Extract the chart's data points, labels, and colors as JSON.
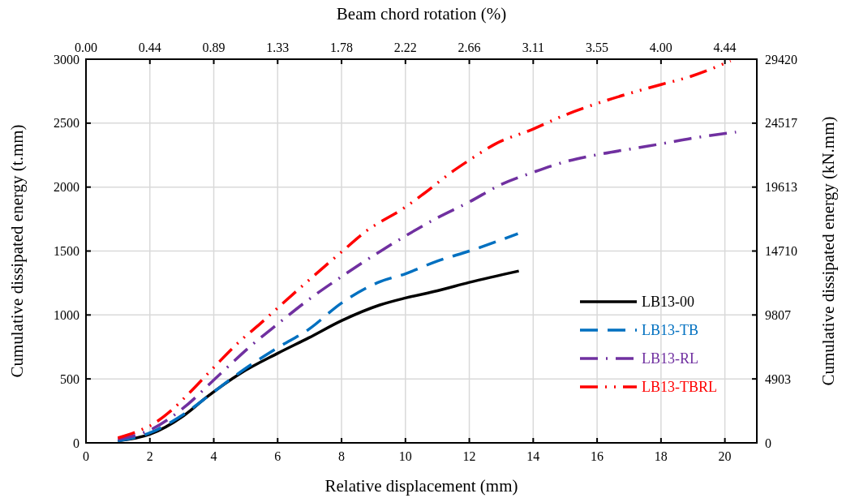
{
  "chart_data": {
    "type": "line",
    "xlabel": "Relative displacement (mm)",
    "ylabel": "Cumulative dissipated energy  (t.mm)",
    "y2label": "Cumulative dissipated energy (kN.mm)",
    "x2label": "Beam chord rotation (%)",
    "xlim": [
      0,
      21
    ],
    "xticks": [
      0,
      2,
      4,
      6,
      8,
      10,
      12,
      14,
      16,
      18,
      20
    ],
    "ylim": [
      0,
      3000
    ],
    "yticks": [
      0,
      500,
      1000,
      1500,
      2000,
      2500,
      3000
    ],
    "y2lim": [
      0,
      29420
    ],
    "y2ticks": [
      0,
      4903,
      9807,
      14710,
      19613,
      24517,
      29420
    ],
    "x2lim": [
      0,
      4.662
    ],
    "x2ticks": [
      {
        "value": 0,
        "label": "0.00"
      },
      {
        "value": 0.444,
        "label": "0.44"
      },
      {
        "value": 0.888,
        "label": "0.89"
      },
      {
        "value": 1.332,
        "label": "1.33"
      },
      {
        "value": 1.776,
        "label": "1.78"
      },
      {
        "value": 2.22,
        "label": "2.22"
      },
      {
        "value": 2.664,
        "label": "2.66"
      },
      {
        "value": 3.108,
        "label": "3.11"
      },
      {
        "value": 3.552,
        "label": "3.55"
      },
      {
        "value": 3.996,
        "label": "4.00"
      },
      {
        "value": 4.44,
        "label": "4.44"
      }
    ],
    "grid": true,
    "legend": "right",
    "series": [
      {
        "name": "LB13-00",
        "color": "#000000",
        "line_style": "solid",
        "x": [
          1,
          2,
          3.05,
          3.77,
          4.84,
          6,
          6.98,
          8,
          9.2,
          10,
          11,
          12,
          13.55
        ],
        "values": [
          15,
          67,
          211,
          356,
          544,
          700,
          822,
          955,
          1078,
          1133,
          1189,
          1255,
          1344
        ]
      },
      {
        "name": "LB13-TB",
        "color": "#0070c0",
        "line_style": "dashed",
        "x": [
          1,
          2,
          3.05,
          3.95,
          4.84,
          6,
          6.98,
          8,
          9.2,
          10,
          11,
          12,
          13.52
        ],
        "values": [
          15,
          78,
          222,
          389,
          555,
          744,
          889,
          1093,
          1260,
          1322,
          1422,
          1500,
          1636
        ]
      },
      {
        "name": "LB13-RL",
        "color": "#7030a0",
        "line_style": "dashdot",
        "x": [
          1,
          2,
          3.05,
          4.13,
          5.2,
          6,
          6.98,
          8,
          9.27,
          10,
          11,
          12,
          13,
          14,
          15.03,
          16,
          17.24,
          18,
          18.93,
          20.35
        ],
        "values": [
          29,
          100,
          273,
          522,
          767,
          929,
          1122,
          1300,
          1507,
          1618,
          1760,
          1884,
          2021,
          2116,
          2200,
          2253,
          2306,
          2338,
          2380,
          2430
        ]
      },
      {
        "name": "LB13-TBRL",
        "color": "#ff0000",
        "line_style": "dashdotdot",
        "x": [
          1,
          1.67,
          2,
          2.7,
          3.23,
          4.04,
          4.84,
          5.46,
          6,
          6.9,
          8,
          8.77,
          10,
          10.55,
          11.5,
          12,
          12.82,
          14,
          14.95,
          16,
          17.24,
          18,
          18.93,
          20.18
        ],
        "values": [
          38,
          96,
          133,
          260,
          389,
          600,
          800,
          933,
          1055,
          1255,
          1493,
          1655,
          1844,
          1944,
          2127,
          2211,
          2338,
          2454,
          2559,
          2654,
          2749,
          2802,
          2865,
          2987
        ]
      }
    ]
  }
}
